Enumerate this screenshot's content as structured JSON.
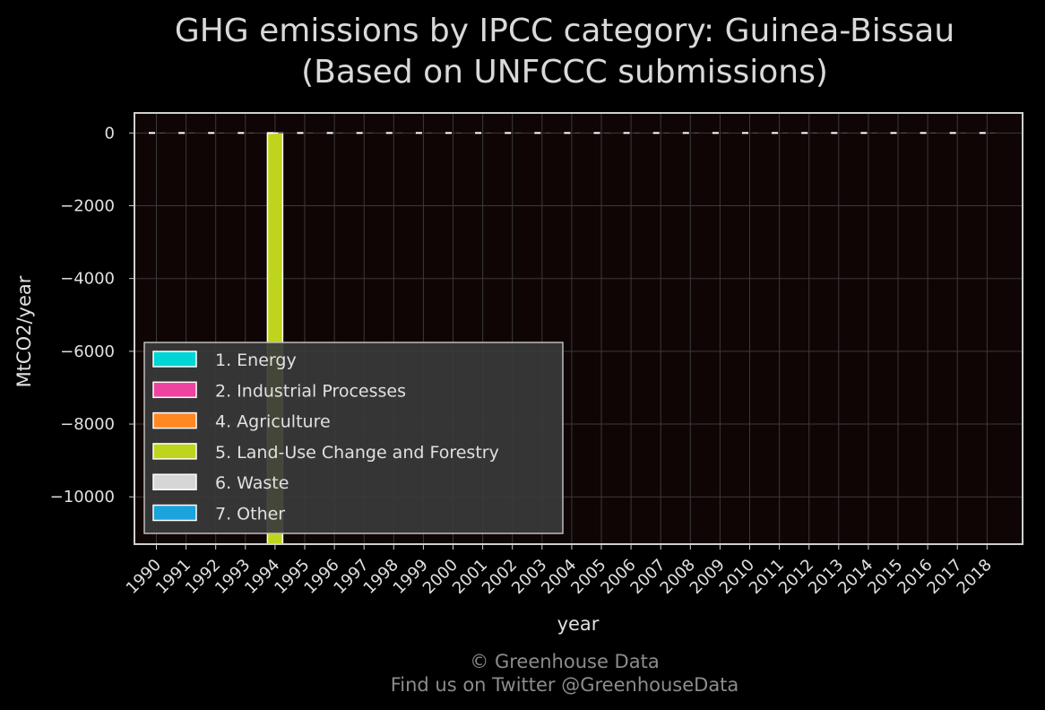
{
  "chart_data": {
    "type": "bar",
    "title_line1": "GHG emissions by IPCC category: Guinea-Bissau",
    "title_line2": "(Based on UNFCCC submissions)",
    "xlabel": "year",
    "ylabel": "MtCO2/year",
    "categories": [
      "1990",
      "1991",
      "1992",
      "1993",
      "1994",
      "1995",
      "1996",
      "1997",
      "1998",
      "1999",
      "2000",
      "2001",
      "2002",
      "2003",
      "2004",
      "2005",
      "2006",
      "2007",
      "2008",
      "2009",
      "2010",
      "2011",
      "2012",
      "2013",
      "2014",
      "2015",
      "2016",
      "2017",
      "2018"
    ],
    "ylim": [
      -11300,
      550
    ],
    "yticks": [
      0,
      -2000,
      -4000,
      -6000,
      -8000,
      -10000
    ],
    "ytick_labels": [
      "0",
      "−2000",
      "−4000",
      "−6000",
      "−8000",
      "−10000"
    ],
    "grid": true,
    "legend_position": "lower-left",
    "series": [
      {
        "name": "1. Energy",
        "color": "#00d5d5",
        "values": [
          0,
          0,
          0,
          0,
          0,
          0,
          0,
          0,
          0,
          0,
          0,
          0,
          0,
          0,
          0,
          0,
          0,
          0,
          0,
          0,
          0,
          0,
          0,
          0,
          0,
          0,
          0,
          0,
          0
        ]
      },
      {
        "name": "2. Industrial Processes",
        "color": "#ee44a0",
        "values": [
          0,
          0,
          0,
          0,
          0,
          0,
          0,
          0,
          0,
          0,
          0,
          0,
          0,
          0,
          0,
          0,
          0,
          0,
          0,
          0,
          0,
          0,
          0,
          0,
          0,
          0,
          0,
          0,
          0
        ]
      },
      {
        "name": "4. Agriculture",
        "color": "#ff8822",
        "values": [
          0,
          0,
          0,
          0,
          0,
          0,
          0,
          0,
          0,
          0,
          0,
          0,
          0,
          0,
          0,
          0,
          0,
          0,
          0,
          0,
          0,
          0,
          0,
          0,
          0,
          0,
          0,
          0,
          0
        ]
      },
      {
        "name": "5. Land-Use Change and Forestry",
        "color": "#bfd41c",
        "values": [
          0,
          0,
          0,
          0,
          -11300,
          0,
          0,
          0,
          0,
          0,
          0,
          0,
          0,
          0,
          0,
          0,
          0,
          0,
          0,
          0,
          0,
          0,
          0,
          0,
          0,
          0,
          0,
          0,
          0
        ]
      },
      {
        "name": "6. Waste",
        "color": "#d6d6d6",
        "values": [
          0,
          0,
          0,
          0,
          0,
          0,
          0,
          0,
          0,
          0,
          0,
          0,
          0,
          0,
          0,
          0,
          0,
          0,
          0,
          0,
          0,
          0,
          0,
          0,
          0,
          0,
          0,
          0,
          0
        ]
      },
      {
        "name": "7. Other",
        "color": "#1ba3dc",
        "values": [
          0,
          0,
          0,
          0,
          0,
          0,
          0,
          0,
          0,
          0,
          0,
          0,
          0,
          0,
          0,
          0,
          0,
          0,
          0,
          0,
          0,
          0,
          0,
          0,
          0,
          0,
          0,
          0,
          0
        ]
      }
    ],
    "colors": {
      "plot_background": "#0f0505",
      "grid": "#3a3a3a",
      "frame": "#cfcfcf",
      "zero_line": "#ffffff"
    }
  },
  "credits": {
    "line1": "© Greenhouse Data",
    "line2": "Find us on Twitter @GreenhouseData"
  }
}
